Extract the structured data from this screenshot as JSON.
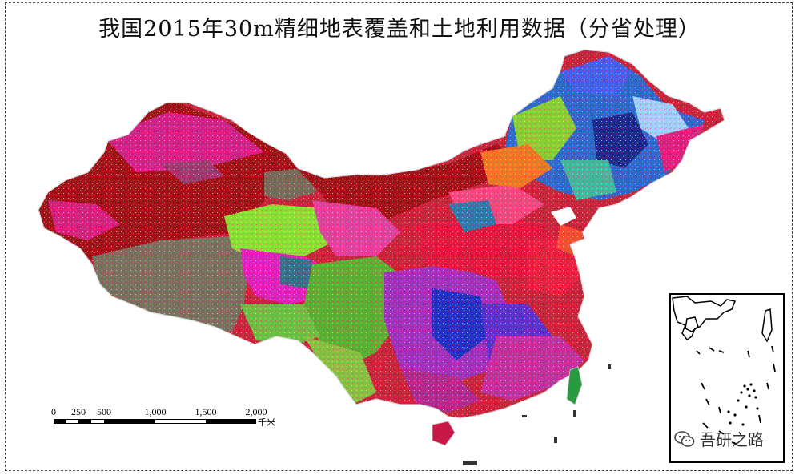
{
  "title": "我国2015年30m精细地表覆盖和土地利用数据（分省处理）",
  "scale_bar": {
    "ticks": [
      "0",
      "250",
      "500",
      "1,000",
      "1,500",
      "2,000"
    ],
    "unit": "千米"
  },
  "watermark": {
    "text": "吾研之路",
    "icon": "wechat-icon"
  },
  "colors": {
    "dark_red": "#a01218",
    "gray_brown": "#7a7060",
    "magenta": "#e020b0",
    "lime": "#88e030",
    "green": "#28a028",
    "blue": "#2030c8",
    "purple": "#a030c0",
    "crimson": "#e01840",
    "orange": "#f08020",
    "teal": "#30708a"
  }
}
